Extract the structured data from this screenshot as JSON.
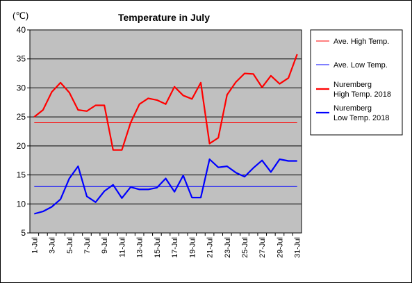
{
  "chart_data": {
    "type": "line",
    "title": "Temperature in July",
    "unit_label": "(℃)",
    "xlabel": "",
    "ylabel": "",
    "ylim": [
      5,
      40
    ],
    "yticks": [
      5,
      10,
      15,
      20,
      25,
      30,
      35,
      40
    ],
    "grid": "horizontal",
    "legend_position": "right",
    "x": [
      1,
      2,
      3,
      4,
      5,
      6,
      7,
      8,
      9,
      10,
      11,
      12,
      13,
      14,
      15,
      16,
      17,
      18,
      19,
      20,
      21,
      22,
      23,
      24,
      25,
      26,
      27,
      28,
      29,
      30,
      31
    ],
    "xtick_labels": [
      "1-Jul",
      "3-Jul",
      "5-Jul",
      "7-Jul",
      "9-Jul",
      "11-Jul",
      "13-Jul",
      "15-Jul",
      "17-Jul",
      "19-Jul",
      "21-Jul",
      "23-Jul",
      "25-Jul",
      "27-Jul",
      "29-Jul",
      "31-Jul"
    ],
    "series": [
      {
        "name": "Ave. High Temp.",
        "color": "#ff0000",
        "style": "thin",
        "values": [
          24,
          24,
          24,
          24,
          24,
          24,
          24,
          24,
          24,
          24,
          24,
          24,
          24,
          24,
          24,
          24,
          24,
          24,
          24,
          24,
          24,
          24,
          24,
          24,
          24,
          24,
          24,
          24,
          24,
          24,
          24
        ]
      },
      {
        "name": "Ave. Low Temp.",
        "color": "#0000ff",
        "style": "thin",
        "values": [
          13,
          13,
          13,
          13,
          13,
          13,
          13,
          13,
          13,
          13,
          13,
          13,
          13,
          13,
          13,
          13,
          13,
          13,
          13,
          13,
          13,
          13,
          13,
          13,
          13,
          13,
          13,
          13,
          13,
          13,
          13
        ]
      },
      {
        "name": "Nuremberg High Temp. 2018",
        "color": "#ff0000",
        "style": "thick",
        "values": [
          25,
          26.2,
          29.3,
          30.9,
          29.2,
          26.2,
          26,
          27,
          27,
          19.3,
          19.3,
          24,
          27.2,
          28.2,
          27.9,
          27.2,
          30.2,
          28.7,
          28.1,
          30.9,
          20.4,
          21.4,
          28.8,
          31,
          32.5,
          32.4,
          30.1,
          32.1,
          30.7,
          31.7,
          35.8
        ]
      },
      {
        "name": "Nuremberg Low Temp. 2018",
        "color": "#0000ff",
        "style": "thick",
        "values": [
          8.3,
          8.7,
          9.5,
          10.8,
          14.4,
          16.5,
          11.3,
          10.3,
          12.2,
          13.3,
          11,
          12.9,
          12.5,
          12.5,
          12.8,
          14.4,
          12.1,
          14.9,
          11.1,
          11.1,
          17.7,
          16.3,
          16.5,
          15.4,
          14.7,
          16.2,
          17.5,
          15.5,
          17.7,
          17.4,
          17.4
        ]
      }
    ]
  }
}
